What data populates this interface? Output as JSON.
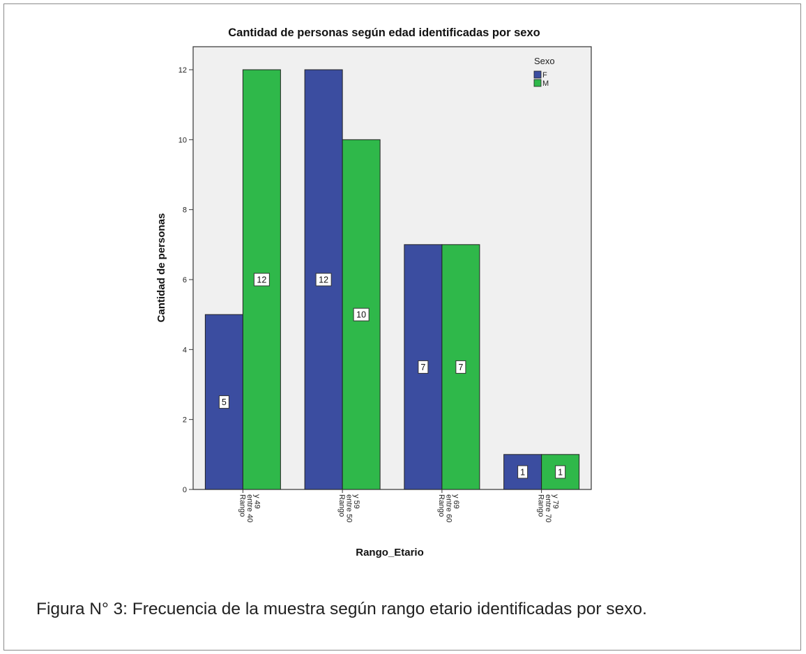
{
  "chart_data": {
    "type": "bar",
    "title": "Cantidad de personas según edad identificadas por sexo",
    "xlabel": "Rango_Etario",
    "ylabel": "Cantidad de personas",
    "categories": [
      [
        "Rango",
        "entre 40",
        "y 49"
      ],
      [
        "Rango",
        "entre 50",
        "y 59"
      ],
      [
        "Rango",
        "entre 60",
        "y 69"
      ],
      [
        "Rango",
        "entre 70",
        "y 79"
      ]
    ],
    "series": [
      {
        "name": "F",
        "color": "#3b4da0",
        "values": [
          5,
          12,
          7,
          1
        ]
      },
      {
        "name": "M",
        "color": "#2fb84a",
        "values": [
          12,
          10,
          7,
          1
        ]
      }
    ],
    "ylim": [
      0,
      12
    ],
    "yticks": [
      0,
      2,
      4,
      6,
      8,
      10,
      12
    ],
    "legend": {
      "title": "Sexo",
      "position": "top-right"
    },
    "grid": false,
    "plot_background": "#f0f0f0"
  },
  "caption": "Figura N° 3: Frecuencia de la muestra según rango etario identificadas por sexo."
}
